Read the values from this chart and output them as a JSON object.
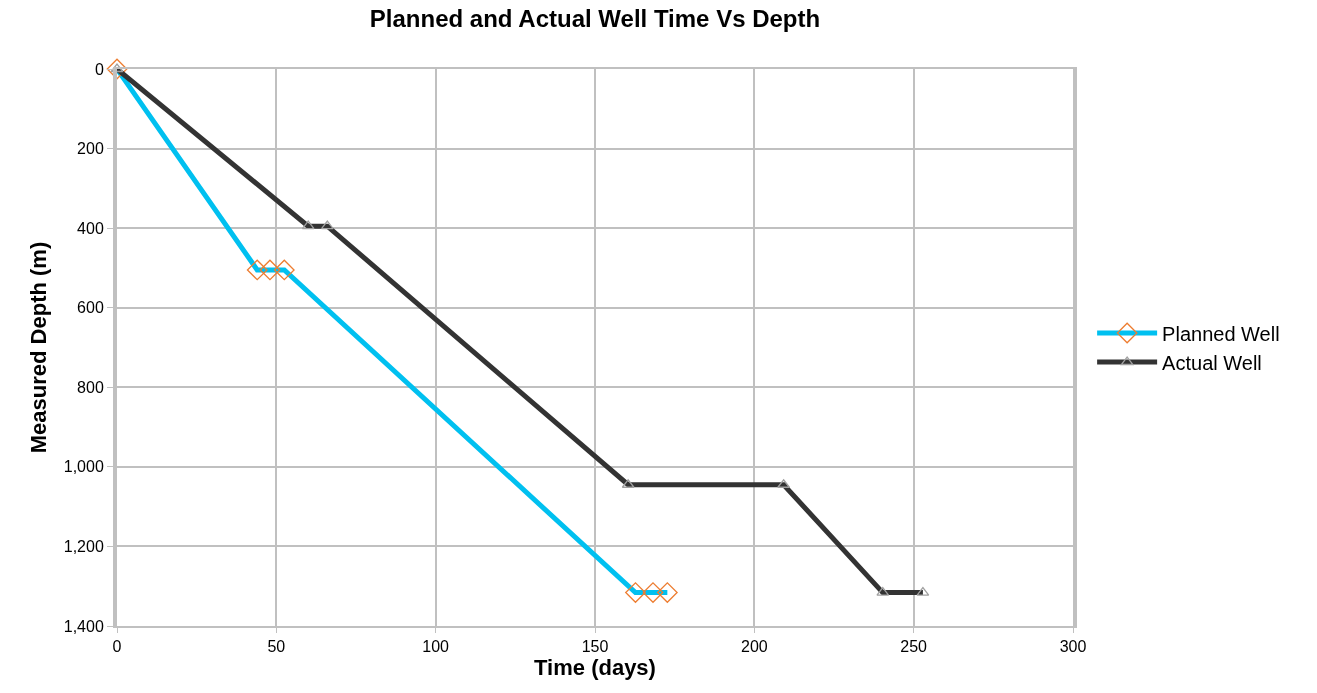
{
  "chart_data": {
    "type": "line",
    "title": "Planned and Actual Well Time Vs Depth",
    "xlabel": "Time (days)",
    "ylabel": "Measured Depth (m)",
    "series": [
      {
        "name": "Planned Well",
        "color": "#00c0f0",
        "colors": [
          "#ed7d31",
          "#ed7d31",
          "#ed7d31",
          "#ed7d31",
          "#ed7d31",
          "#ed7d31",
          "#ed7d31"
        ],
        "marker": "diamond",
        "x": [
          0,
          44,
          48,
          52.5,
          162.7,
          168.2,
          172.7
        ],
        "values": [
          0,
          505,
          505,
          505,
          1316,
          1316,
          1316
        ]
      },
      {
        "name": "Actual Well",
        "color": "#333333",
        "colors": [
          "#a0a0a0",
          "#a0a0a0",
          "#a0a0a0",
          "#a0a0a0",
          "#a0a0a0",
          "#a0a0a0",
          "#a0a0a0"
        ],
        "marker": "triangle",
        "x": [
          0,
          60,
          66,
          160.4,
          209.2,
          240.3,
          252.9
        ],
        "values": [
          0,
          395,
          395,
          1045,
          1045,
          1316,
          1316
        ]
      }
    ],
    "xlim": [
      0,
      300
    ],
    "xticks": [
      0,
      50,
      100,
      150,
      200,
      250,
      300
    ],
    "ylim": [
      1400,
      0
    ],
    "yticks": [
      0,
      200,
      400,
      600,
      800,
      {
        "value": 1000,
        "label": "1,000"
      },
      {
        "value": 1200,
        "label": "1,200"
      },
      {
        "value": 1400,
        "label": "1,400"
      }
    ],
    "grid": true,
    "legend": "right",
    "line_style": "solid"
  }
}
